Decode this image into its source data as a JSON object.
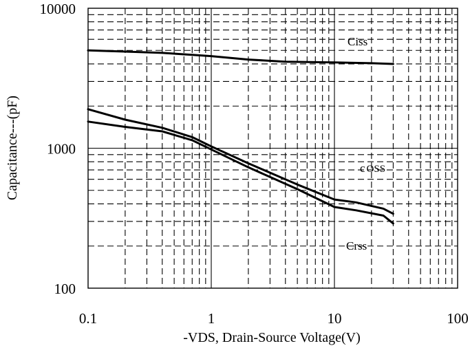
{
  "chart_data": {
    "type": "line",
    "xscale": "log",
    "yscale": "log",
    "xlim": [
      0.1,
      100
    ],
    "ylim": [
      100,
      10000
    ],
    "grid": true,
    "xlabel": "-VDS, Drain-Source Voltage(V)",
    "ylabel": "Capacitance---(pF)",
    "x_ticks": [
      "0.1",
      "1",
      "10",
      "100"
    ],
    "y_ticks": [
      "100",
      "1000",
      "10000"
    ],
    "series": [
      {
        "name": "Ciss",
        "x": [
          0.1,
          0.2,
          0.4,
          0.7,
          1,
          2,
          4,
          10,
          20,
          30
        ],
        "y": [
          5000,
          4900,
          4800,
          4650,
          4550,
          4300,
          4150,
          4100,
          4050,
          4000
        ]
      },
      {
        "name": "Coss",
        "x": [
          0.1,
          0.2,
          0.4,
          0.7,
          1,
          2,
          5,
          10,
          15,
          25,
          30
        ],
        "y": [
          1900,
          1600,
          1400,
          1200,
          1030,
          780,
          550,
          430,
          410,
          370,
          340
        ]
      },
      {
        "name": "Crss",
        "x": [
          0.1,
          0.2,
          0.4,
          0.7,
          1,
          2,
          5,
          10,
          15,
          25,
          30
        ],
        "y": [
          1550,
          1420,
          1320,
          1140,
          980,
          730,
          510,
          380,
          360,
          330,
          290
        ]
      }
    ],
    "labels": {
      "ciss": "Ciss",
      "coss_c": "c",
      "coss_sub": "OSS",
      "crss": "Crss"
    }
  }
}
